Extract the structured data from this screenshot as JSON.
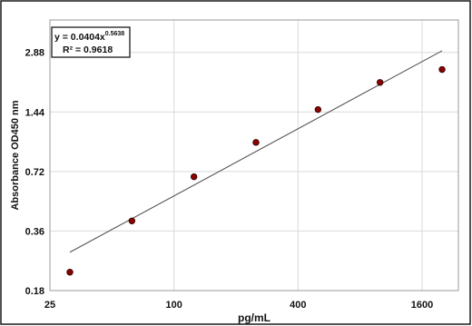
{
  "chart_data": {
    "type": "scatter",
    "xlabel": "pg/mL",
    "ylabel": "Absorbance OD450 nm",
    "x_scale": "log2",
    "y_scale": "log2",
    "xlim": [
      25,
      2400
    ],
    "ylim": [
      0.18,
      4.2
    ],
    "x_ticks": [
      25,
      100,
      400,
      1600
    ],
    "x_tick_labels": [
      "25",
      "100",
      "400",
      "1600"
    ],
    "y_ticks": [
      0.18,
      0.36,
      0.72,
      1.44,
      2.88
    ],
    "y_tick_labels": [
      "0.18",
      "0.36",
      "0.72",
      "1.44",
      "2.88"
    ],
    "grid": true,
    "points": {
      "x": [
        31.25,
        62.5,
        125,
        250,
        500,
        1000,
        2000
      ],
      "y": [
        0.223,
        0.405,
        0.677,
        1.01,
        1.48,
        2.03,
        2.36
      ]
    },
    "fit": {
      "equation_prefix": "y = 0.0404x",
      "exponent": "0.5638",
      "r_squared_label": "R² = 0.9618",
      "a": 0.0404,
      "b": 0.5638,
      "x_range": [
        31.25,
        2000
      ]
    },
    "colors": {
      "point_fill": "#8b0000",
      "point_stroke": "#2a0000",
      "fit_line": "#555555",
      "grid": "#d9d9d9",
      "frame": "#1a1a1a"
    }
  }
}
